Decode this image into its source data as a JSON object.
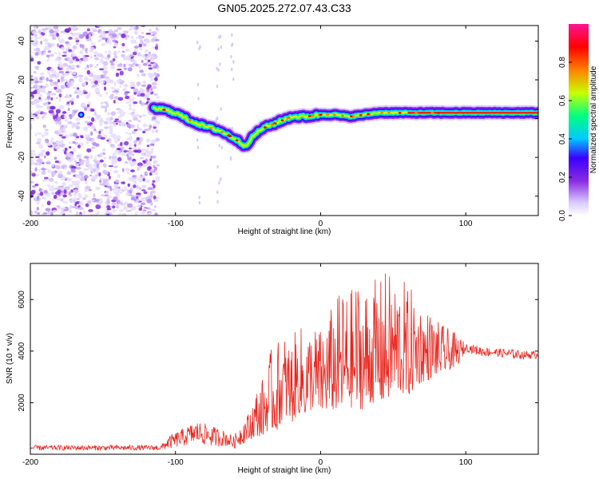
{
  "title": "GN05.2025.272.07.43.C33",
  "chart_data": [
    {
      "type": "heatmap",
      "xlabel": "Height of straight line (km)",
      "ylabel": "Frequency (Hz)",
      "xlim": [
        -200,
        150
      ],
      "ylim": [
        -50,
        48
      ],
      "xticks": [
        -200,
        -100,
        0,
        100
      ],
      "yticks": [
        -40,
        -20,
        0,
        20,
        40
      ],
      "ridge": {
        "x": [
          -115,
          -110,
          -100,
          -90,
          -80,
          -70,
          -60,
          -52,
          -45,
          -40,
          -30,
          -20,
          -10,
          0,
          10,
          20,
          30,
          40,
          50,
          60,
          70,
          80,
          90,
          100,
          110,
          120,
          130,
          140,
          150
        ],
        "y": [
          5,
          5,
          3,
          -1,
          -4,
          -6,
          -10,
          -14,
          -8,
          -5,
          -2,
          1,
          1,
          2,
          2,
          1,
          2,
          3,
          3,
          3,
          3,
          3,
          3,
          3,
          3,
          3,
          3,
          3,
          3
        ]
      },
      "noise_region": [
        -200,
        -112
      ],
      "colorbar": {
        "label": "Normalized spectral amplitude",
        "range": [
          0,
          1
        ],
        "ticks": [
          "0.0",
          "0.2",
          "0.4",
          "0.6",
          "0.8"
        ],
        "tick_values": [
          0,
          0.2,
          0.4,
          0.6,
          0.8
        ],
        "colors": [
          "#ffffff",
          "#d8c8ff",
          "#8a2be2",
          "#3a00ff",
          "#00c8ff",
          "#00ff80",
          "#c8ff00",
          "#ff8000",
          "#ff0000",
          "#ff1493"
        ]
      }
    },
    {
      "type": "line",
      "xlabel": "Height of straight line (km)",
      "ylabel": "SNR (10 * v/v)",
      "xlim": [
        -200,
        150
      ],
      "ylim": [
        0,
        7400
      ],
      "xticks": [
        -200,
        -100,
        0,
        100
      ],
      "yticks": [
        2000,
        4000,
        6000
      ],
      "color": "#e8261e",
      "envelope": {
        "x": [
          -200,
          -110,
          -105,
          -95,
          -85,
          -75,
          -65,
          -60,
          -50,
          -45,
          -40,
          -35,
          -30,
          -25,
          -20,
          -15,
          -10,
          -5,
          0,
          5,
          10,
          15,
          20,
          25,
          30,
          35,
          40,
          45,
          50,
          55,
          60,
          65,
          70,
          75,
          80,
          85,
          90,
          95,
          100,
          110,
          120,
          130,
          140,
          150
        ],
        "base": [
          150,
          150,
          200,
          300,
          400,
          300,
          300,
          200,
          500,
          700,
          700,
          1000,
          900,
          1500,
          1200,
          1600,
          1500,
          1800,
          1600,
          1700,
          1700,
          1700,
          1800,
          1800,
          1700,
          2000,
          2000,
          2000,
          2400,
          2400,
          2200,
          2600,
          2800,
          2900,
          3100,
          3200,
          3300,
          3500,
          4000,
          3800,
          3800,
          3700,
          3700,
          3700
        ],
        "peak": [
          350,
          350,
          700,
          1000,
          1300,
          1100,
          900,
          700,
          1600,
          2500,
          3000,
          4000,
          4400,
          4700,
          4500,
          5000,
          4900,
          5100,
          4900,
          5500,
          6000,
          6500,
          6300,
          6900,
          6600,
          6900,
          6700,
          7200,
          6900,
          7000,
          6500,
          6400,
          5800,
          5600,
          5200,
          5000,
          4800,
          4600,
          4300,
          4200,
          4100,
          4100,
          4000,
          4000
        ]
      }
    }
  ]
}
